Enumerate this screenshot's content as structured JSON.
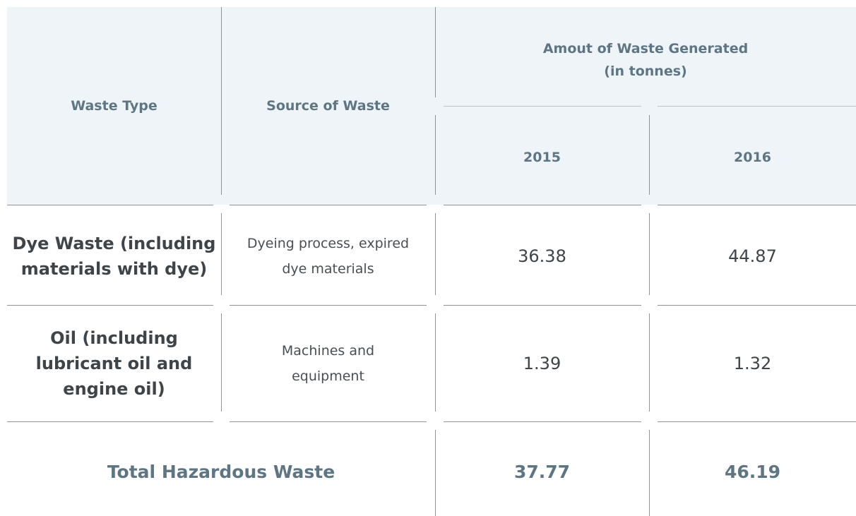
{
  "table": {
    "header": {
      "columns": [
        "Waste Type",
        "Source of Waste"
      ],
      "group": "Amout of Waste Generated",
      "group_unit": "(in tonnes)",
      "years": [
        "2015",
        "2016"
      ]
    },
    "rows": [
      [
        "Dye Waste (including materials with dye)",
        "Dyeing process, expired dye materials",
        36.38,
        44.87
      ],
      [
        "Oil (including lubricant oil and engine oil)",
        "Machines and equipment",
        1.39,
        1.32
      ]
    ],
    "total": {
      "label": "Total Hazardous Waste",
      "values": [
        37.77,
        46.19
      ]
    }
  }
}
